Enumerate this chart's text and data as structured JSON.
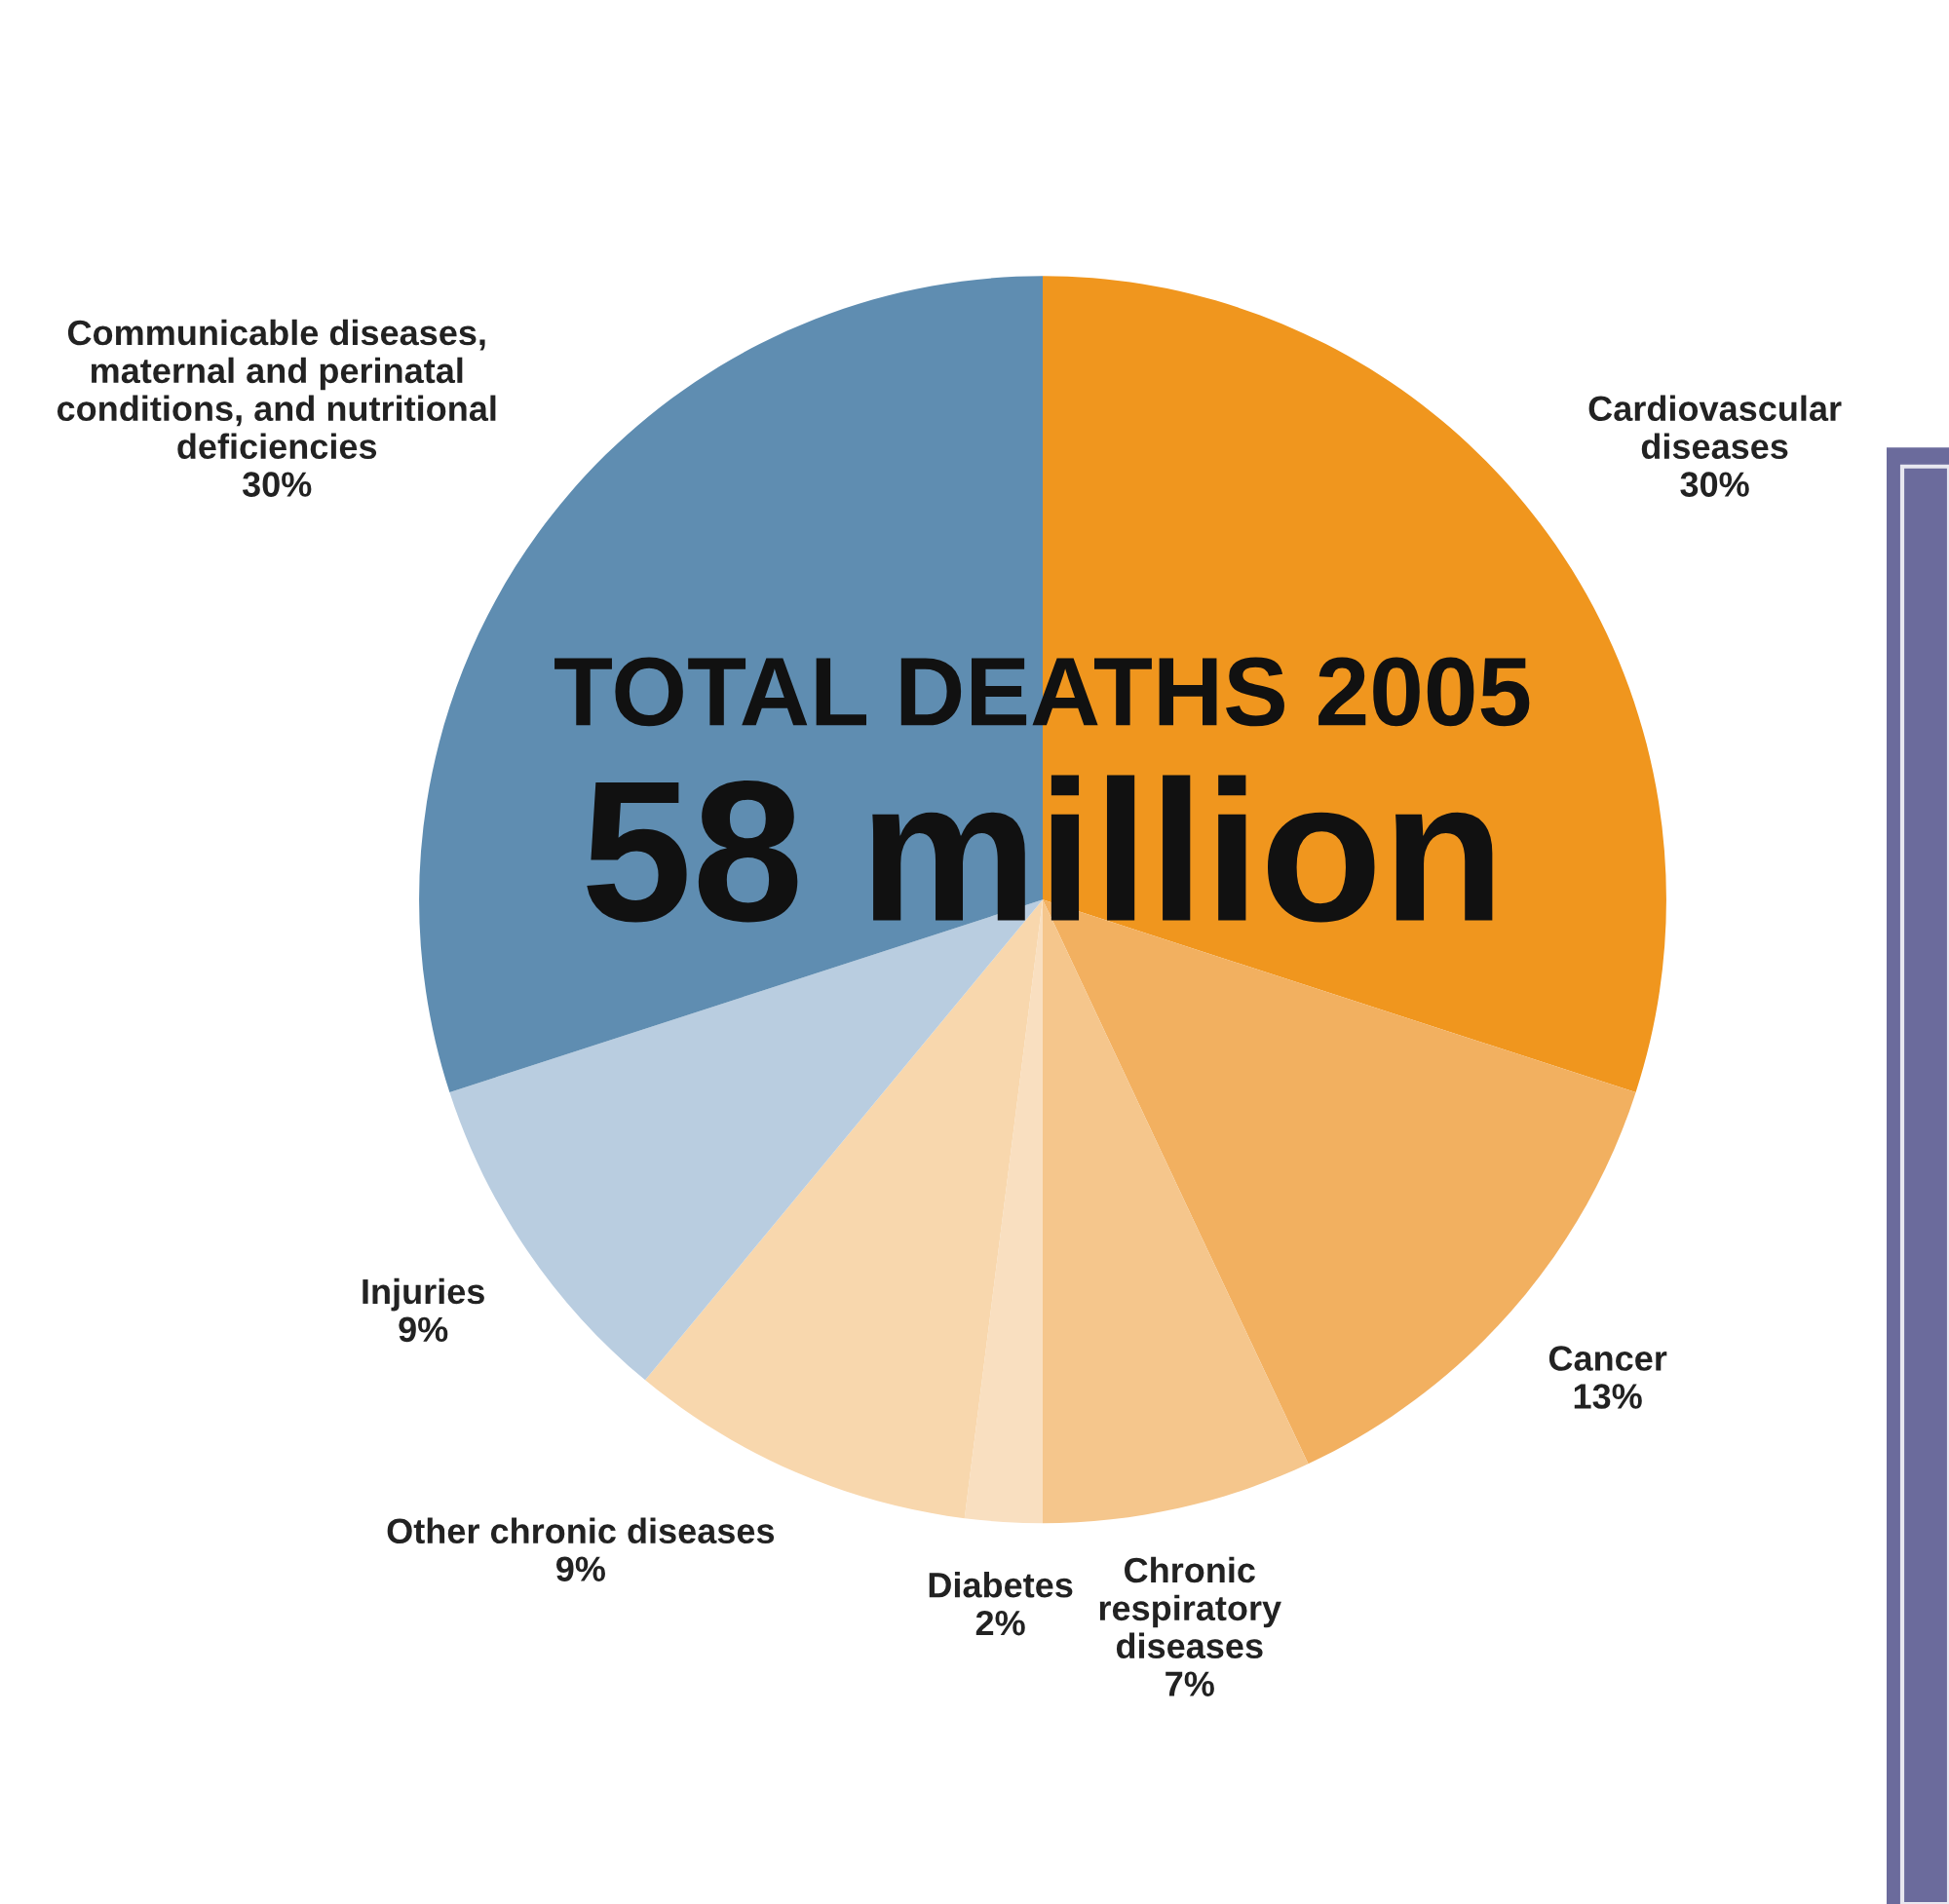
{
  "chart_data": {
    "type": "pie",
    "title": "TOTAL DEATHS 2005",
    "subtitle": "58 million",
    "categories": [
      "Cardiovascular\ndiseases",
      "Cancer",
      "Chronic\nrespiratory\ndiseases",
      "Diabetes",
      "Other chronic diseases",
      "Injuries",
      "Communicable diseases,\nmaternal and perinatal\nconditions, and nutritional\ndeficiencies"
    ],
    "values": [
      30,
      13,
      7,
      2,
      9,
      9,
      30
    ],
    "value_labels": [
      "30%",
      "13%",
      "7%",
      "2%",
      "9%",
      "9%",
      "30%"
    ],
    "colors": [
      "#f0961e",
      "#f2b060",
      "#f5c68c",
      "#f9dfc0",
      "#f8d7ad",
      "#b9cde0",
      "#5f8db1"
    ],
    "legend": false
  }
}
